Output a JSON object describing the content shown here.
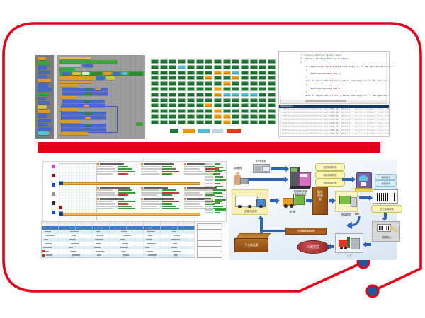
{
  "slide": {
    "frame_color": "#e50019",
    "divider_color": "#e3001b",
    "dot_color": "#1d5a9d"
  },
  "status_board": {
    "rows": [
      "GGGGGGGGGGGGGG",
      "GGGCGGGGGGGGGG",
      "GGGGGGGOOCGGGG",
      "GGGGGGOGGOGGGG",
      "GGGGGGGGOGGGGG",
      "GGGGGGGOGGGGGG",
      "GGGGGGGOCCCCGG",
      "GGGGGGGGGGGGGG",
      "GGGGGGOGGGGGGG",
      "GGGGGGGOGGGGGG",
      "GGGGGGGOOGGGGG",
      "GGGGGGGGOGGGGG"
    ],
    "legend": [
      {
        "name": "green",
        "color": "#1c7a33"
      },
      {
        "name": "orange",
        "color": "#f59b00"
      },
      {
        "name": "cyan",
        "color": "#55c0dd"
      },
      {
        "name": "pale",
        "color": "#c7dcea"
      },
      {
        "name": "red",
        "color": "#e8391d"
      }
    ]
  },
  "code_editor": {
    "lines": [
      [
        [
          "cm",
          "// Factory starting status check"
        ]
      ],
      [
        [
          "kw",
          "if"
        ],
        [
          "pl",
          " (factory_starting.Enabled == "
        ],
        [
          "kw",
          "false"
        ],
        [
          "pl",
          ")"
        ]
      ],
      [
        [
          "pl",
          "{"
        ]
      ],
      [
        [
          "pl",
          "    "
        ],
        [
          "kw",
          "if"
        ],
        [
          "pl",
          " (dgvs.Cells["
        ],
        [
          "st",
          "\"wms1\""
        ],
        [
          "pl",
          "].Value.ToString() == "
        ],
        [
          "st",
          "\"1\""
        ],
        [
          "pl",
          " && dgvs.Cells["
        ],
        [
          "st",
          "\"wms...\""
        ]
      ],
      [
        [
          "pl",
          "    {"
        ]
      ],
      [
        [
          "pl",
          "        RestoreGroupTask("
        ],
        [
          "st",
          "\"W01\""
        ],
        [
          "pl",
          ");"
        ]
      ],
      [
        [
          "pl",
          "    }"
        ]
      ],
      [
        [
          "pl",
          "    "
        ],
        [
          "kw",
          "else if"
        ],
        [
          "pl",
          " (dgvs.Cells["
        ],
        [
          "st",
          "\"Color\""
        ],
        [
          "pl",
          "].Value.ToString() == "
        ],
        [
          "st",
          "\"2\""
        ],
        [
          "pl",
          " && dgvs.Ce..."
        ]
      ],
      [
        [
          "pl",
          "    {"
        ]
      ],
      [
        [
          "pl",
          "        RestoreGroupTask("
        ],
        [
          "st",
          "\"W02\""
        ],
        [
          "pl",
          ");"
        ]
      ],
      [
        [
          "pl",
          "    }"
        ]
      ],
      [
        [
          "pl",
          "    "
        ],
        [
          "kw",
          "else if"
        ],
        [
          "pl",
          " (dgvs.Cells["
        ],
        [
          "st",
          "\"Color\""
        ],
        [
          "pl",
          "].Value.ToString() == "
        ],
        [
          "st",
          "\"3\""
        ],
        [
          "pl",
          " && dgvs.Ce..."
        ]
      ]
    ],
    "results": {
      "header": "Find Results 1",
      "row_prefix": "C:\\WMS\\AutoWarehouseSystem\\MES\\PLCItem_Basic(",
      "row_mid": "): NETIptcbl = dgv.Cells[\"pcbleNo\"].Value.ToString() != ",
      "row_token": "NETIptcbl",
      "rows": [
        "2331.16",
        "2701.16",
        "2978.66",
        "3121.26",
        "2794.66",
        "2749.76",
        "2631.66",
        "2479.76",
        "2753.26",
        "2561.26"
      ]
    }
  },
  "diagram": {
    "purchaser_label": "採購員",
    "erp_label": "ERP系統",
    "system_caption_1": "營運管理系統",
    "system_caption_2": "條碼DB系統",
    "yellow_tags": [
      "進貨條碼標籤",
      "物料條碼標籤",
      "棧板條碼標籤"
    ],
    "printer_tags": [
      "條碼列印",
      "標籤列印",
      "標籤張貼"
    ],
    "truck_label": "供應商送貨",
    "unload_label": "卸 貨",
    "staging_label": "暫存理貨區",
    "receive_label": "數量驗收",
    "paste_label": "貼上條碼標籤",
    "scan_label": "條碼讀入",
    "shelf_label": "上 架",
    "done_label": "入庫完成",
    "ng_label": "NG",
    "reject_staging_label": "不合格品暫存區",
    "reject_store_label": "不合格品庫"
  }
}
